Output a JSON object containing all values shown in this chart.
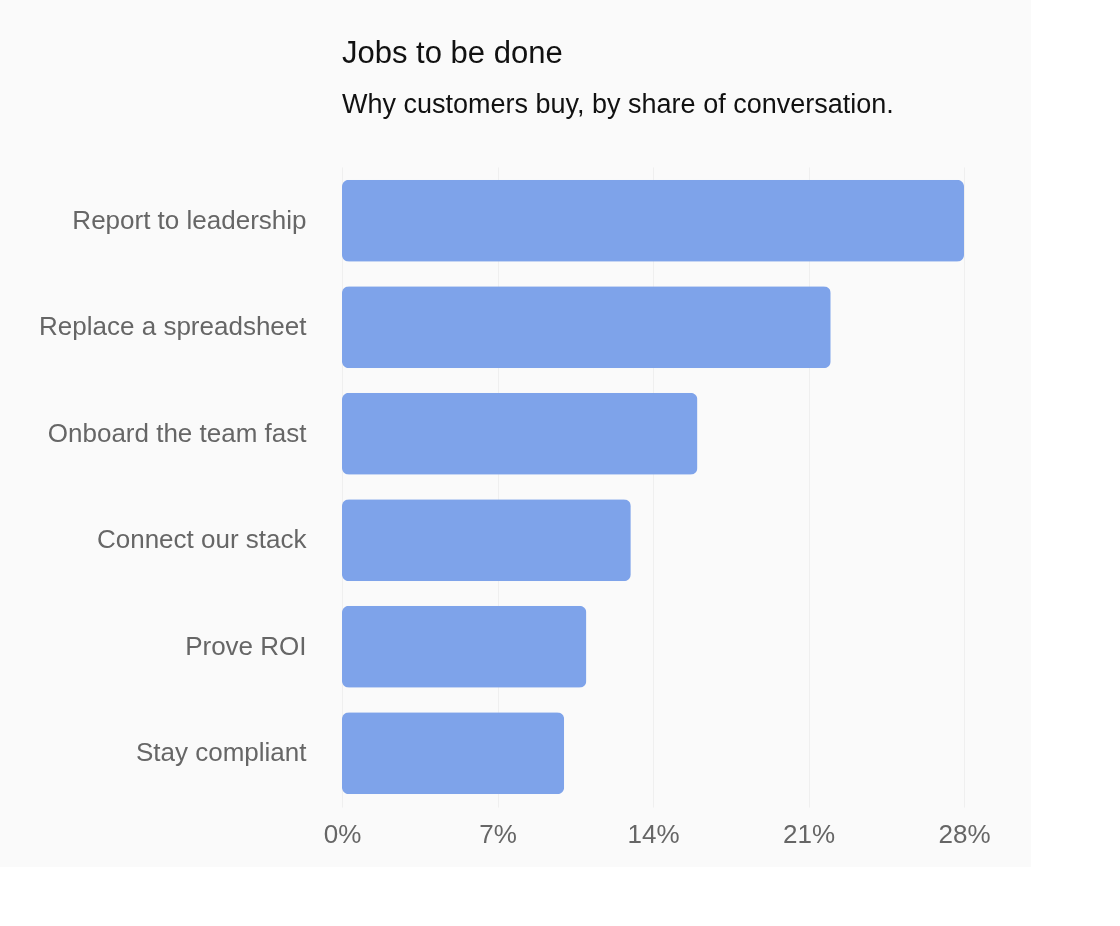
{
  "chart_data": {
    "type": "bar",
    "orientation": "horizontal",
    "title": "Jobs to be done",
    "subtitle": "Why customers buy, by share of conversation.",
    "categories": [
      "Report to leadership",
      "Replace a spreadsheet",
      "Onboard the team fast",
      "Connect our stack",
      "Prove ROI",
      "Stay compliant"
    ],
    "values": [
      28,
      22,
      16,
      13,
      11,
      10
    ],
    "color": "#7ea3ea",
    "xlim": [
      0,
      28
    ],
    "xticks": [
      {
        "value": 0,
        "label": "0%"
      },
      {
        "value": 7,
        "label": "7%"
      },
      {
        "value": 14,
        "label": "14%"
      },
      {
        "value": 21,
        "label": "21%"
      },
      {
        "value": 28,
        "label": "28%"
      }
    ],
    "grid": "x"
  }
}
